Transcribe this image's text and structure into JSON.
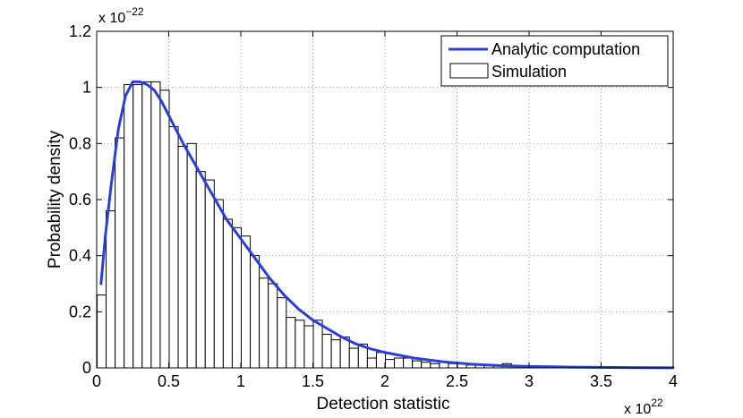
{
  "chart_data": {
    "type": "bar",
    "xlabel": "Detection statistic",
    "ylabel": "Probability density",
    "x_multiplier": {
      "base": "x 10",
      "exponent": "22"
    },
    "y_multiplier": {
      "base": "x 10",
      "exponent": "−22"
    },
    "xlim": [
      0,
      4
    ],
    "ylim": [
      0,
      1.2
    ],
    "x_ticks": [
      0,
      0.5,
      1,
      1.5,
      2,
      2.5,
      3,
      3.5,
      4
    ],
    "x_tick_labels": [
      "0",
      "0.5",
      "1",
      "1.5",
      "2",
      "2.5",
      "3",
      "3.5",
      "4"
    ],
    "y_ticks": [
      0,
      0.2,
      0.4,
      0.6,
      0.8,
      1,
      1.2
    ],
    "y_tick_labels": [
      "0",
      "0.2",
      "0.4",
      "0.6",
      "0.8",
      "1",
      "1.2"
    ],
    "grid": true,
    "legend_position": "top-right",
    "bin_width": 0.0625,
    "series": [
      {
        "name": "Analytic computation",
        "kind": "line",
        "color": "#2a3fd6",
        "x": [
          0.03,
          0.06,
          0.1,
          0.15,
          0.2,
          0.25,
          0.3,
          0.35,
          0.4,
          0.45,
          0.5,
          0.6,
          0.7,
          0.8,
          0.9,
          1.0,
          1.1,
          1.2,
          1.3,
          1.4,
          1.5,
          1.6,
          1.7,
          1.8,
          1.9,
          2.0,
          2.2,
          2.4,
          2.6,
          2.8,
          3.0,
          3.25,
          3.5,
          3.75,
          4.0
        ],
        "y": [
          0.3,
          0.47,
          0.65,
          0.85,
          0.97,
          1.02,
          1.02,
          1.01,
          0.99,
          0.95,
          0.9,
          0.8,
          0.71,
          0.62,
          0.53,
          0.46,
          0.39,
          0.32,
          0.26,
          0.21,
          0.17,
          0.14,
          0.11,
          0.085,
          0.068,
          0.055,
          0.035,
          0.022,
          0.013,
          0.008,
          0.005,
          0.003,
          0.002,
          0.001,
          0.0005
        ]
      },
      {
        "name": "Simulation",
        "kind": "histogram",
        "color": "#ffffff",
        "edge_color": "#000000",
        "bin_starts": [
          0,
          0.0625,
          0.125,
          0.1875,
          0.25,
          0.3125,
          0.375,
          0.4375,
          0.5,
          0.5625,
          0.625,
          0.6875,
          0.75,
          0.8125,
          0.875,
          0.9375,
          1.0,
          1.0625,
          1.125,
          1.1875,
          1.25,
          1.3125,
          1.375,
          1.4375,
          1.5,
          1.5625,
          1.625,
          1.6875,
          1.75,
          1.8125,
          1.875,
          1.9375,
          2.0,
          2.0625,
          2.125,
          2.1875,
          2.25,
          2.3125,
          2.375,
          2.4375,
          2.5,
          2.5625,
          2.625,
          2.6875,
          2.75,
          2.8125,
          2.875,
          2.9375,
          3.0,
          3.0625,
          3.125,
          3.1875,
          3.25,
          3.3125,
          3.375,
          3.4375,
          3.5,
          3.5625,
          3.625,
          3.6875,
          3.75,
          3.8125,
          3.875,
          3.9375
        ],
        "values": [
          0.26,
          0.56,
          0.82,
          1.01,
          1.01,
          1.02,
          1.02,
          0.99,
          0.86,
          0.79,
          0.8,
          0.7,
          0.67,
          0.6,
          0.53,
          0.5,
          0.47,
          0.4,
          0.32,
          0.3,
          0.25,
          0.18,
          0.17,
          0.15,
          0.17,
          0.12,
          0.1,
          0.11,
          0.07,
          0.085,
          0.035,
          0.055,
          0.03,
          0.035,
          0.035,
          0.025,
          0.02,
          0.015,
          0.02,
          0.015,
          0.015,
          0.01,
          0.012,
          0.01,
          0.01,
          0.015,
          0.008,
          0.008,
          0.006,
          0.006,
          0.005,
          0.004,
          0.004,
          0.004,
          0.003,
          0.003,
          0.002,
          0.002,
          0.002,
          0.001,
          0.001,
          0.001,
          0.001,
          0.001
        ]
      }
    ]
  }
}
